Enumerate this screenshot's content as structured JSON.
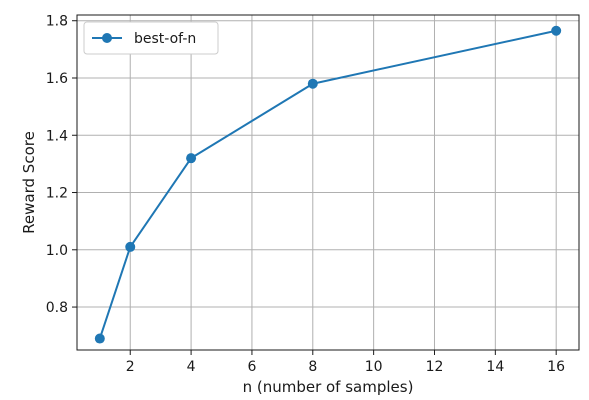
{
  "chart_data": {
    "type": "line",
    "title": "",
    "xlabel": "n (number of samples)",
    "ylabel": "Reward Score",
    "x": [
      1,
      2,
      4,
      8,
      16
    ],
    "series": [
      {
        "name": "best-of-n",
        "values": [
          0.69,
          1.01,
          1.32,
          1.58,
          1.765
        ],
        "color": "#1f77b4",
        "marker": "circle"
      }
    ],
    "xlim": [
      0.25,
      16.75
    ],
    "ylim": [
      0.65,
      1.82
    ],
    "xticks": [
      2,
      4,
      6,
      8,
      10,
      12,
      14,
      16
    ],
    "xtick_labels": [
      "2",
      "4",
      "6",
      "8",
      "10",
      "12",
      "14",
      "16"
    ],
    "yticks": [
      0.8,
      1.0,
      1.2,
      1.4,
      1.6,
      1.8
    ],
    "ytick_labels": [
      "0.8",
      "1.0",
      "1.2",
      "1.4",
      "1.6",
      "1.8"
    ],
    "grid": true,
    "legend_position": "top-left"
  }
}
